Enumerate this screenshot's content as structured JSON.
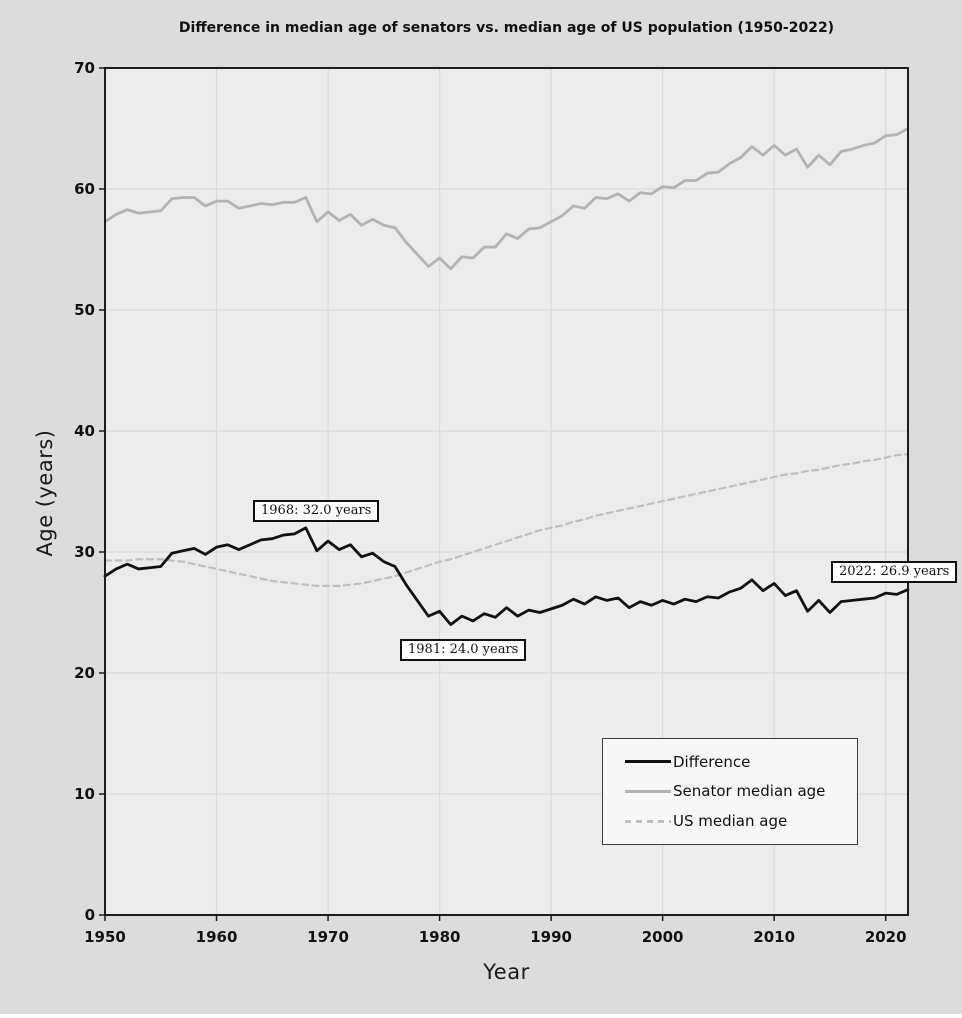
{
  "chart_data": {
    "type": "line",
    "title": "Difference in median age of senators vs. median age of US population (1950-2022)",
    "xlabel": "Year",
    "ylabel": "Age (years)",
    "xlim": [
      1950,
      2022
    ],
    "ylim": [
      0,
      70
    ],
    "xticks": [
      1950,
      1960,
      1970,
      1980,
      1990,
      2000,
      2010,
      2020
    ],
    "yticks": [
      0,
      10,
      20,
      30,
      40,
      50,
      60,
      70
    ],
    "grid": true,
    "legend_position": "lower right",
    "figure_background": "#dcdcdc",
    "plot_background": "#ececec",
    "grid_color": "#d9d9d9",
    "x": [
      1950,
      1951,
      1952,
      1953,
      1954,
      1955,
      1956,
      1957,
      1958,
      1959,
      1960,
      1961,
      1962,
      1963,
      1964,
      1965,
      1966,
      1967,
      1968,
      1969,
      1970,
      1971,
      1972,
      1973,
      1974,
      1975,
      1976,
      1977,
      1978,
      1979,
      1980,
      1981,
      1982,
      1983,
      1984,
      1985,
      1986,
      1987,
      1988,
      1989,
      1990,
      1991,
      1992,
      1993,
      1994,
      1995,
      1996,
      1997,
      1998,
      1999,
      2000,
      2001,
      2002,
      2003,
      2004,
      2005,
      2006,
      2007,
      2008,
      2009,
      2010,
      2011,
      2012,
      2013,
      2014,
      2015,
      2016,
      2017,
      2018,
      2019,
      2020,
      2021,
      2022
    ],
    "series": [
      {
        "name": "Difference",
        "color": "#111111",
        "style": "solid",
        "width": 2.8,
        "values": [
          28.0,
          28.6,
          29.0,
          28.6,
          28.7,
          28.8,
          29.9,
          30.1,
          30.3,
          29.8,
          30.4,
          30.6,
          30.2,
          30.6,
          31.0,
          31.1,
          31.4,
          31.5,
          32.0,
          30.1,
          30.9,
          30.2,
          30.6,
          29.6,
          29.9,
          29.2,
          28.8,
          27.3,
          26.0,
          24.7,
          25.1,
          24.0,
          24.7,
          24.3,
          24.9,
          24.6,
          25.4,
          24.7,
          25.2,
          25.0,
          25.3,
          25.6,
          26.1,
          25.7,
          26.3,
          26.0,
          26.2,
          25.4,
          25.9,
          25.6,
          26.0,
          25.7,
          26.1,
          25.9,
          26.3,
          26.2,
          26.7,
          27.0,
          27.7,
          26.8,
          27.4,
          26.4,
          26.8,
          25.1,
          26.0,
          25.0,
          25.9,
          26.0,
          26.1,
          26.2,
          26.6,
          26.5,
          26.9
        ]
      },
      {
        "name": "Senator median age",
        "color": "#b3b3b3",
        "style": "solid",
        "width": 2.8,
        "values": [
          57.3,
          57.9,
          58.3,
          58.0,
          58.1,
          58.2,
          59.2,
          59.3,
          59.3,
          58.6,
          59.0,
          59.0,
          58.4,
          58.6,
          58.8,
          58.7,
          58.9,
          58.9,
          59.3,
          57.3,
          58.1,
          57.4,
          57.9,
          57.0,
          57.5,
          57.0,
          56.8,
          55.6,
          54.6,
          53.6,
          54.3,
          53.4,
          54.4,
          54.3,
          55.2,
          55.2,
          56.3,
          55.9,
          56.7,
          56.8,
          57.3,
          57.8,
          58.6,
          58.4,
          59.3,
          59.2,
          59.6,
          59.0,
          59.7,
          59.6,
          60.2,
          60.1,
          60.7,
          60.7,
          61.3,
          61.4,
          62.1,
          62.6,
          63.5,
          62.8,
          63.6,
          62.8,
          63.3,
          61.8,
          62.8,
          62.0,
          63.1,
          63.3,
          63.6,
          63.8,
          64.4,
          64.5,
          65.0
        ]
      },
      {
        "name": "US median age",
        "color": "#bfbfbf",
        "style": "dashed",
        "width": 2.2,
        "values": [
          29.3,
          29.3,
          29.3,
          29.4,
          29.4,
          29.4,
          29.3,
          29.2,
          29.0,
          28.8,
          28.6,
          28.4,
          28.2,
          28.0,
          27.8,
          27.6,
          27.5,
          27.4,
          27.3,
          27.2,
          27.2,
          27.2,
          27.3,
          27.4,
          27.6,
          27.8,
          28.0,
          28.3,
          28.6,
          28.9,
          29.2,
          29.4,
          29.7,
          30.0,
          30.3,
          30.6,
          30.9,
          31.2,
          31.5,
          31.8,
          32.0,
          32.2,
          32.5,
          32.7,
          33.0,
          33.2,
          33.4,
          33.6,
          33.8,
          34.0,
          34.2,
          34.4,
          34.6,
          34.8,
          35.0,
          35.2,
          35.4,
          35.6,
          35.8,
          36.0,
          36.2,
          36.4,
          36.5,
          36.7,
          36.8,
          37.0,
          37.2,
          37.3,
          37.5,
          37.6,
          37.8,
          38.0,
          38.1
        ]
      }
    ],
    "annotations": [
      {
        "text": "1968: 32.0 years",
        "year": 1968,
        "value": 32.0
      },
      {
        "text": "1981: 24.0 years",
        "year": 1981,
        "value": 24.0
      },
      {
        "text": "2022: 26.9 years",
        "year": 2022,
        "value": 26.9
      }
    ]
  }
}
